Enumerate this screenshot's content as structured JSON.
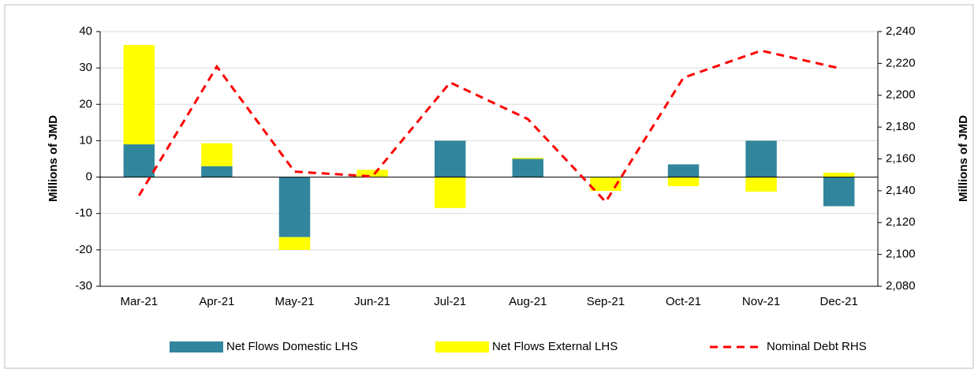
{
  "chart_data": {
    "type": "bar_line",
    "categories": [
      "Mar-21",
      "Apr-21",
      "May-21",
      "Jun-21",
      "Jul-21",
      "Aug-21",
      "Sep-21",
      "Oct-21",
      "Nov-21",
      "Dec-21"
    ],
    "series": [
      {
        "name": "Net Flows Domestic LHS",
        "color": "#31859c",
        "type": "bar",
        "values": [
          9,
          3,
          -16.5,
          0,
          10,
          5,
          0,
          3.5,
          10,
          -8
        ]
      },
      {
        "name": "Net Flows External LHS",
        "color": "#ffff00",
        "type": "bar",
        "values": [
          27.3,
          6.3,
          -3.5,
          2,
          -8.5,
          0.3,
          -3.8,
          -2.5,
          -4,
          1.2
        ]
      },
      {
        "name": "Nominal Debt RHS",
        "color": "#ff0000",
        "type": "line",
        "axis": "y2",
        "values": [
          2137,
          2218,
          2152,
          2149,
          2208,
          2185,
          2133,
          2211,
          2228,
          2217
        ]
      }
    ],
    "ylabel": "Millions of JMD",
    "y2label": "Millions of JMD",
    "ylim": [
      -30,
      40
    ],
    "yticks": [
      -30,
      -20,
      -10,
      0,
      10,
      20,
      30,
      40
    ],
    "y2lim": [
      2080,
      2240
    ],
    "y2ticks": [
      {
        "value": 2080,
        "label": "2,080"
      },
      {
        "value": 2100,
        "label": "2,100"
      },
      {
        "value": 2120,
        "label": "2,120"
      },
      {
        "value": 2140,
        "label": "2,140"
      },
      {
        "value": 2160,
        "label": "2,160"
      },
      {
        "value": 2180,
        "label": "2,180"
      },
      {
        "value": 2200,
        "label": "2,200"
      },
      {
        "value": 2220,
        "label": "2,220"
      },
      {
        "value": 2240,
        "label": "2,240"
      }
    ],
    "grid": true,
    "legend": "bottom"
  }
}
